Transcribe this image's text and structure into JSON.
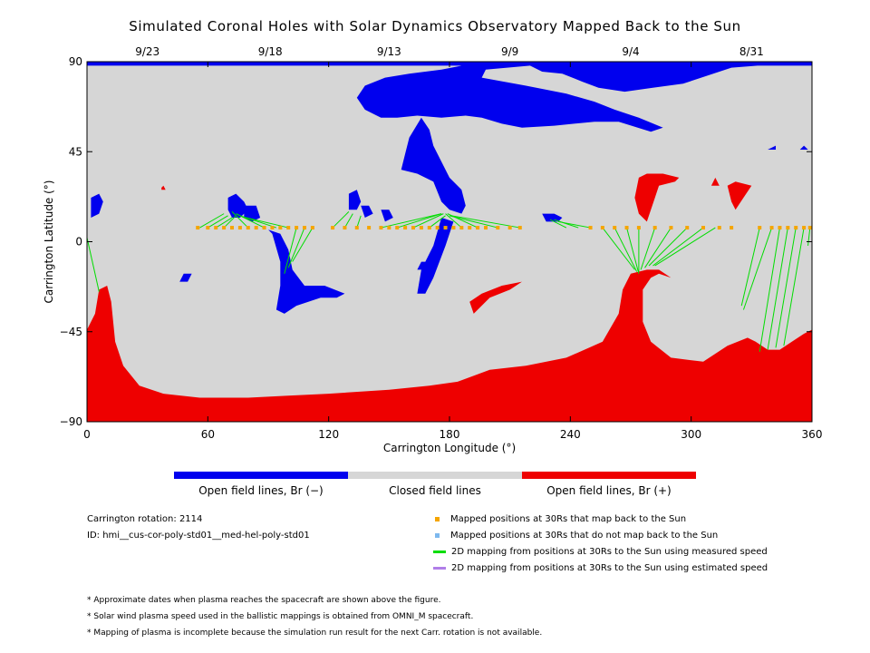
{
  "chart_data": {
    "type": "map",
    "title": "Simulated Coronal Holes with Solar Dynamics Observatory Mapped Back to the Sun",
    "xlabel": "Carrington Longitude (°)",
    "ylabel": "Carrington Latitude (°)",
    "xlim": [
      0,
      360
    ],
    "ylim": [
      -90,
      90
    ],
    "x_ticks": [
      0,
      60,
      120,
      180,
      240,
      300,
      360
    ],
    "y_ticks": [
      -90,
      -45,
      0,
      45,
      90
    ],
    "y_tick_labels": [
      "−90",
      "−45",
      "0",
      "45",
      "90"
    ],
    "top_dates": [
      {
        "label": "9/23",
        "lon": 30
      },
      {
        "label": "9/18",
        "lon": 91
      },
      {
        "label": "9/13",
        "lon": 150
      },
      {
        "label": "9/9",
        "lon": 210
      },
      {
        "label": "9/4",
        "lon": 270
      },
      {
        "label": "8/31",
        "lon": 330
      }
    ],
    "colors": {
      "negative": "#0000ee",
      "closed": "#d6d6d6",
      "positive": "#ee0000",
      "mapped": "#f5a500",
      "unmapped": "#7db8ee",
      "measured": "#00dd00",
      "estimated": "#b07ee8"
    },
    "spacecraft_latitude": 7,
    "mapped_points_lon": [
      55,
      60,
      64,
      68,
      72,
      76,
      80,
      84,
      88,
      92,
      96,
      100,
      104,
      108,
      112,
      122,
      128,
      134,
      140,
      146,
      150,
      154,
      158,
      162,
      166,
      170,
      174,
      178,
      182,
      186,
      190,
      194,
      198,
      204,
      210,
      215,
      250,
      256,
      262,
      268,
      274,
      282,
      290,
      298,
      306,
      314,
      320,
      334,
      340,
      344,
      348,
      352,
      356,
      359
    ],
    "field_lines": [
      {
        "from": [
          56,
          7
        ],
        "to": [
          68,
          14
        ]
      },
      {
        "from": [
          60,
          7
        ],
        "to": [
          70,
          13
        ]
      },
      {
        "from": [
          64,
          7
        ],
        "to": [
          72,
          12
        ]
      },
      {
        "from": [
          68,
          7
        ],
        "to": [
          74,
          13
        ]
      },
      {
        "from": [
          80,
          7
        ],
        "to": [
          72,
          15
        ]
      },
      {
        "from": [
          88,
          7
        ],
        "to": [
          74,
          14
        ]
      },
      {
        "from": [
          94,
          7
        ],
        "to": [
          76,
          13
        ]
      },
      {
        "from": [
          100,
          7
        ],
        "to": [
          79,
          12
        ]
      },
      {
        "from": [
          104,
          7
        ],
        "to": [
          98,
          -16
        ]
      },
      {
        "from": [
          108,
          7
        ],
        "to": [
          100,
          -13
        ]
      },
      {
        "from": [
          112,
          7
        ],
        "to": [
          102,
          -10
        ]
      },
      {
        "from": [
          122,
          7
        ],
        "to": [
          130,
          15
        ]
      },
      {
        "from": [
          128,
          7
        ],
        "to": [
          132,
          14
        ]
      },
      {
        "from": [
          134,
          7
        ],
        "to": [
          136,
          13
        ]
      },
      {
        "from": [
          146,
          7
        ],
        "to": [
          176,
          14
        ]
      },
      {
        "from": [
          154,
          7
        ],
        "to": [
          176,
          14
        ]
      },
      {
        "from": [
          162,
          7
        ],
        "to": [
          177,
          14
        ]
      },
      {
        "from": [
          170,
          7
        ],
        "to": [
          178,
          13
        ]
      },
      {
        "from": [
          186,
          7
        ],
        "to": [
          178,
          14
        ]
      },
      {
        "from": [
          194,
          7
        ],
        "to": [
          179,
          14
        ]
      },
      {
        "from": [
          204,
          7
        ],
        "to": [
          180,
          13
        ]
      },
      {
        "from": [
          215,
          7
        ],
        "to": [
          181,
          13
        ]
      },
      {
        "from": [
          238,
          7
        ],
        "to": [
          230,
          11
        ]
      },
      {
        "from": [
          244,
          7
        ],
        "to": [
          232,
          11
        ]
      },
      {
        "from": [
          250,
          7
        ],
        "to": [
          234,
          10
        ]
      },
      {
        "from": [
          256,
          7
        ],
        "to": [
          272,
          -14
        ]
      },
      {
        "from": [
          262,
          7
        ],
        "to": [
          273,
          -15
        ]
      },
      {
        "from": [
          268,
          7
        ],
        "to": [
          274,
          -16
        ]
      },
      {
        "from": [
          274,
          7
        ],
        "to": [
          274,
          -15
        ]
      },
      {
        "from": [
          282,
          7
        ],
        "to": [
          275,
          -14
        ]
      },
      {
        "from": [
          290,
          7
        ],
        "to": [
          277,
          -13
        ]
      },
      {
        "from": [
          298,
          7
        ],
        "to": [
          279,
          -12
        ]
      },
      {
        "from": [
          306,
          7
        ],
        "to": [
          281,
          -12
        ]
      },
      {
        "from": [
          312,
          7
        ],
        "to": [
          282,
          -12
        ]
      },
      {
        "from": [
          334,
          7
        ],
        "to": [
          325,
          -32
        ]
      },
      {
        "from": [
          340,
          7
        ],
        "to": [
          326,
          -34
        ]
      },
      {
        "from": [
          344,
          7
        ],
        "to": [
          334,
          -55
        ]
      },
      {
        "from": [
          348,
          7
        ],
        "to": [
          338,
          -54
        ]
      },
      {
        "from": [
          352,
          7
        ],
        "to": [
          342,
          -53
        ]
      },
      {
        "from": [
          356,
          7
        ],
        "to": [
          346,
          -52
        ]
      },
      {
        "from": [
          359,
          7
        ],
        "to": [
          358,
          -2
        ]
      },
      {
        "from": [
          0,
          2
        ],
        "to": [
          6,
          -25
        ]
      }
    ],
    "regions_negative": [
      [
        [
          0,
          90
        ],
        [
          360,
          90
        ],
        [
          360,
          88
        ],
        [
          333,
          88
        ],
        [
          320,
          87
        ],
        [
          305,
          82
        ],
        [
          296,
          79
        ],
        [
          281,
          77
        ],
        [
          267,
          75
        ],
        [
          254,
          77
        ],
        [
          246,
          80
        ],
        [
          236,
          84
        ],
        [
          226,
          85
        ],
        [
          220,
          88
        ],
        [
          198,
          86
        ],
        [
          196,
          82
        ],
        [
          218,
          78
        ],
        [
          238,
          74
        ],
        [
          252,
          70
        ],
        [
          262,
          66
        ],
        [
          274,
          62
        ],
        [
          286,
          57
        ],
        [
          280,
          55
        ],
        [
          264,
          60
        ],
        [
          252,
          60
        ],
        [
          232,
          58
        ],
        [
          216,
          57
        ],
        [
          206,
          59
        ],
        [
          196,
          62
        ],
        [
          188,
          63
        ],
        [
          176,
          62
        ],
        [
          164,
          63
        ],
        [
          154,
          62
        ],
        [
          146,
          62
        ],
        [
          138,
          66
        ],
        [
          134,
          72
        ],
        [
          138,
          78
        ],
        [
          148,
          82
        ],
        [
          160,
          84
        ],
        [
          176,
          86
        ],
        [
          186,
          88
        ],
        [
          130,
          88
        ],
        [
          0,
          88
        ]
      ],
      [
        [
          166,
          62
        ],
        [
          160,
          52
        ],
        [
          158,
          44
        ],
        [
          156,
          36
        ],
        [
          164,
          34
        ],
        [
          172,
          30
        ],
        [
          176,
          20
        ],
        [
          180,
          16
        ],
        [
          186,
          14
        ],
        [
          188,
          18
        ],
        [
          186,
          26
        ],
        [
          180,
          32
        ],
        [
          176,
          40
        ],
        [
          172,
          48
        ],
        [
          170,
          56
        ]
      ],
      [
        [
          176,
          12
        ],
        [
          182,
          10
        ],
        [
          178,
          -2
        ],
        [
          172,
          -18
        ],
        [
          168,
          -26
        ],
        [
          164,
          -26
        ],
        [
          166,
          -14
        ],
        [
          172,
          -2
        ]
      ],
      [
        [
          70,
          22
        ],
        [
          74,
          24
        ],
        [
          78,
          20
        ],
        [
          80,
          16
        ],
        [
          76,
          12
        ],
        [
          72,
          12
        ],
        [
          70,
          16
        ]
      ],
      [
        [
          78,
          18
        ],
        [
          84,
          18
        ],
        [
          86,
          12
        ],
        [
          82,
          10
        ],
        [
          78,
          12
        ]
      ],
      [
        [
          90,
          6
        ],
        [
          92,
          4
        ],
        [
          96,
          -10
        ],
        [
          96,
          -22
        ],
        [
          94,
          -34
        ],
        [
          98,
          -36
        ],
        [
          104,
          -32
        ],
        [
          116,
          -28
        ],
        [
          124,
          -28
        ],
        [
          128,
          -26
        ],
        [
          118,
          -22
        ],
        [
          108,
          -22
        ],
        [
          102,
          -14
        ],
        [
          100,
          -4
        ],
        [
          96,
          4
        ]
      ],
      [
        [
          130,
          24
        ],
        [
          134,
          26
        ],
        [
          136,
          20
        ],
        [
          134,
          16
        ],
        [
          130,
          16
        ]
      ],
      [
        [
          136,
          18
        ],
        [
          140,
          18
        ],
        [
          142,
          14
        ],
        [
          138,
          12
        ]
      ],
      [
        [
          2,
          22
        ],
        [
          6,
          24
        ],
        [
          8,
          20
        ],
        [
          6,
          14
        ],
        [
          2,
          12
        ],
        [
          2,
          18
        ]
      ],
      [
        [
          226,
          14
        ],
        [
          232,
          14
        ],
        [
          236,
          12
        ],
        [
          234,
          10
        ],
        [
          228,
          10
        ]
      ],
      [
        [
          146,
          16
        ],
        [
          150,
          16
        ],
        [
          152,
          12
        ],
        [
          148,
          10
        ]
      ],
      [
        [
          166,
          -10
        ],
        [
          168,
          -10
        ],
        [
          168,
          -14
        ],
        [
          164,
          -14
        ]
      ],
      [
        [
          48,
          -16
        ],
        [
          52,
          -16
        ],
        [
          50,
          -20
        ],
        [
          46,
          -20
        ]
      ],
      [
        [
          338,
          46
        ],
        [
          342,
          48
        ],
        [
          342,
          46
        ]
      ],
      [
        [
          354,
          46
        ],
        [
          356,
          48
        ],
        [
          358,
          46
        ]
      ]
    ],
    "regions_positive": [
      [
        [
          0,
          -90
        ],
        [
          360,
          -90
        ],
        [
          360,
          -44
        ],
        [
          356,
          -46
        ],
        [
          350,
          -50
        ],
        [
          344,
          -54
        ],
        [
          338,
          -54
        ],
        [
          332,
          -50
        ],
        [
          328,
          -48
        ],
        [
          318,
          -52
        ],
        [
          306,
          -60
        ],
        [
          290,
          -58
        ],
        [
          280,
          -50
        ],
        [
          276,
          -40
        ],
        [
          276,
          -24
        ],
        [
          280,
          -18
        ],
        [
          284,
          -16
        ],
        [
          290,
          -18
        ],
        [
          284,
          -14
        ],
        [
          278,
          -14
        ],
        [
          270,
          -16
        ],
        [
          266,
          -24
        ],
        [
          264,
          -36
        ],
        [
          256,
          -50
        ],
        [
          238,
          -58
        ],
        [
          218,
          -62
        ],
        [
          200,
          -64
        ],
        [
          184,
          -70
        ],
        [
          170,
          -72
        ],
        [
          150,
          -74
        ],
        [
          120,
          -76
        ],
        [
          100,
          -77
        ],
        [
          80,
          -78
        ],
        [
          56,
          -78
        ],
        [
          38,
          -76
        ],
        [
          26,
          -72
        ],
        [
          18,
          -62
        ],
        [
          14,
          -50
        ],
        [
          12,
          -30
        ],
        [
          10,
          -22
        ],
        [
          6,
          -24
        ],
        [
          4,
          -36
        ],
        [
          0,
          -44
        ]
      ],
      [
        [
          274,
          32
        ],
        [
          278,
          34
        ],
        [
          286,
          34
        ],
        [
          294,
          32
        ],
        [
          292,
          30
        ],
        [
          284,
          28
        ],
        [
          282,
          22
        ],
        [
          278,
          10
        ],
        [
          274,
          14
        ],
        [
          272,
          22
        ]
      ],
      [
        [
          318,
          28
        ],
        [
          322,
          30
        ],
        [
          330,
          28
        ],
        [
          326,
          22
        ],
        [
          322,
          16
        ],
        [
          320,
          20
        ]
      ],
      [
        [
          310,
          28
        ],
        [
          312,
          32
        ],
        [
          314,
          28
        ]
      ],
      [
        [
          190,
          -30
        ],
        [
          196,
          -26
        ],
        [
          206,
          -22
        ],
        [
          216,
          -20
        ],
        [
          210,
          -24
        ],
        [
          200,
          -28
        ],
        [
          192,
          -36
        ]
      ],
      [
        [
          37,
          27
        ],
        [
          38,
          28
        ],
        [
          39,
          26
        ],
        [
          37,
          26
        ]
      ]
    ]
  },
  "colorbar": {
    "negative_label": "Open field lines, Br (−)",
    "closed_label": "Closed field lines",
    "positive_label": "Open field lines, Br (+)"
  },
  "info": {
    "rotation": "Carrington rotation: 2114",
    "id": "ID: hmi__cus-cor-poly-std01__med-hel-poly-std01"
  },
  "legend": {
    "mapped": "Mapped positions at 30Rs that map back to the Sun",
    "unmapped": "Mapped positions at 30Rs that do not map back to the Sun",
    "measured": "2D mapping from positions at 30Rs to the Sun using measured speed",
    "estimated": "2D mapping from positions at 30Rs to the Sun using estimated speed"
  },
  "notes": [
    "* Approximate dates when plasma reaches the spacecraft are shown above the figure.",
    "* Solar wind plasma speed used in the ballistic mappings is obtained from OMNI_M spacecraft.",
    "* Mapping of plasma is incomplete because the simulation run result for the next Carr. rotation is not available."
  ]
}
